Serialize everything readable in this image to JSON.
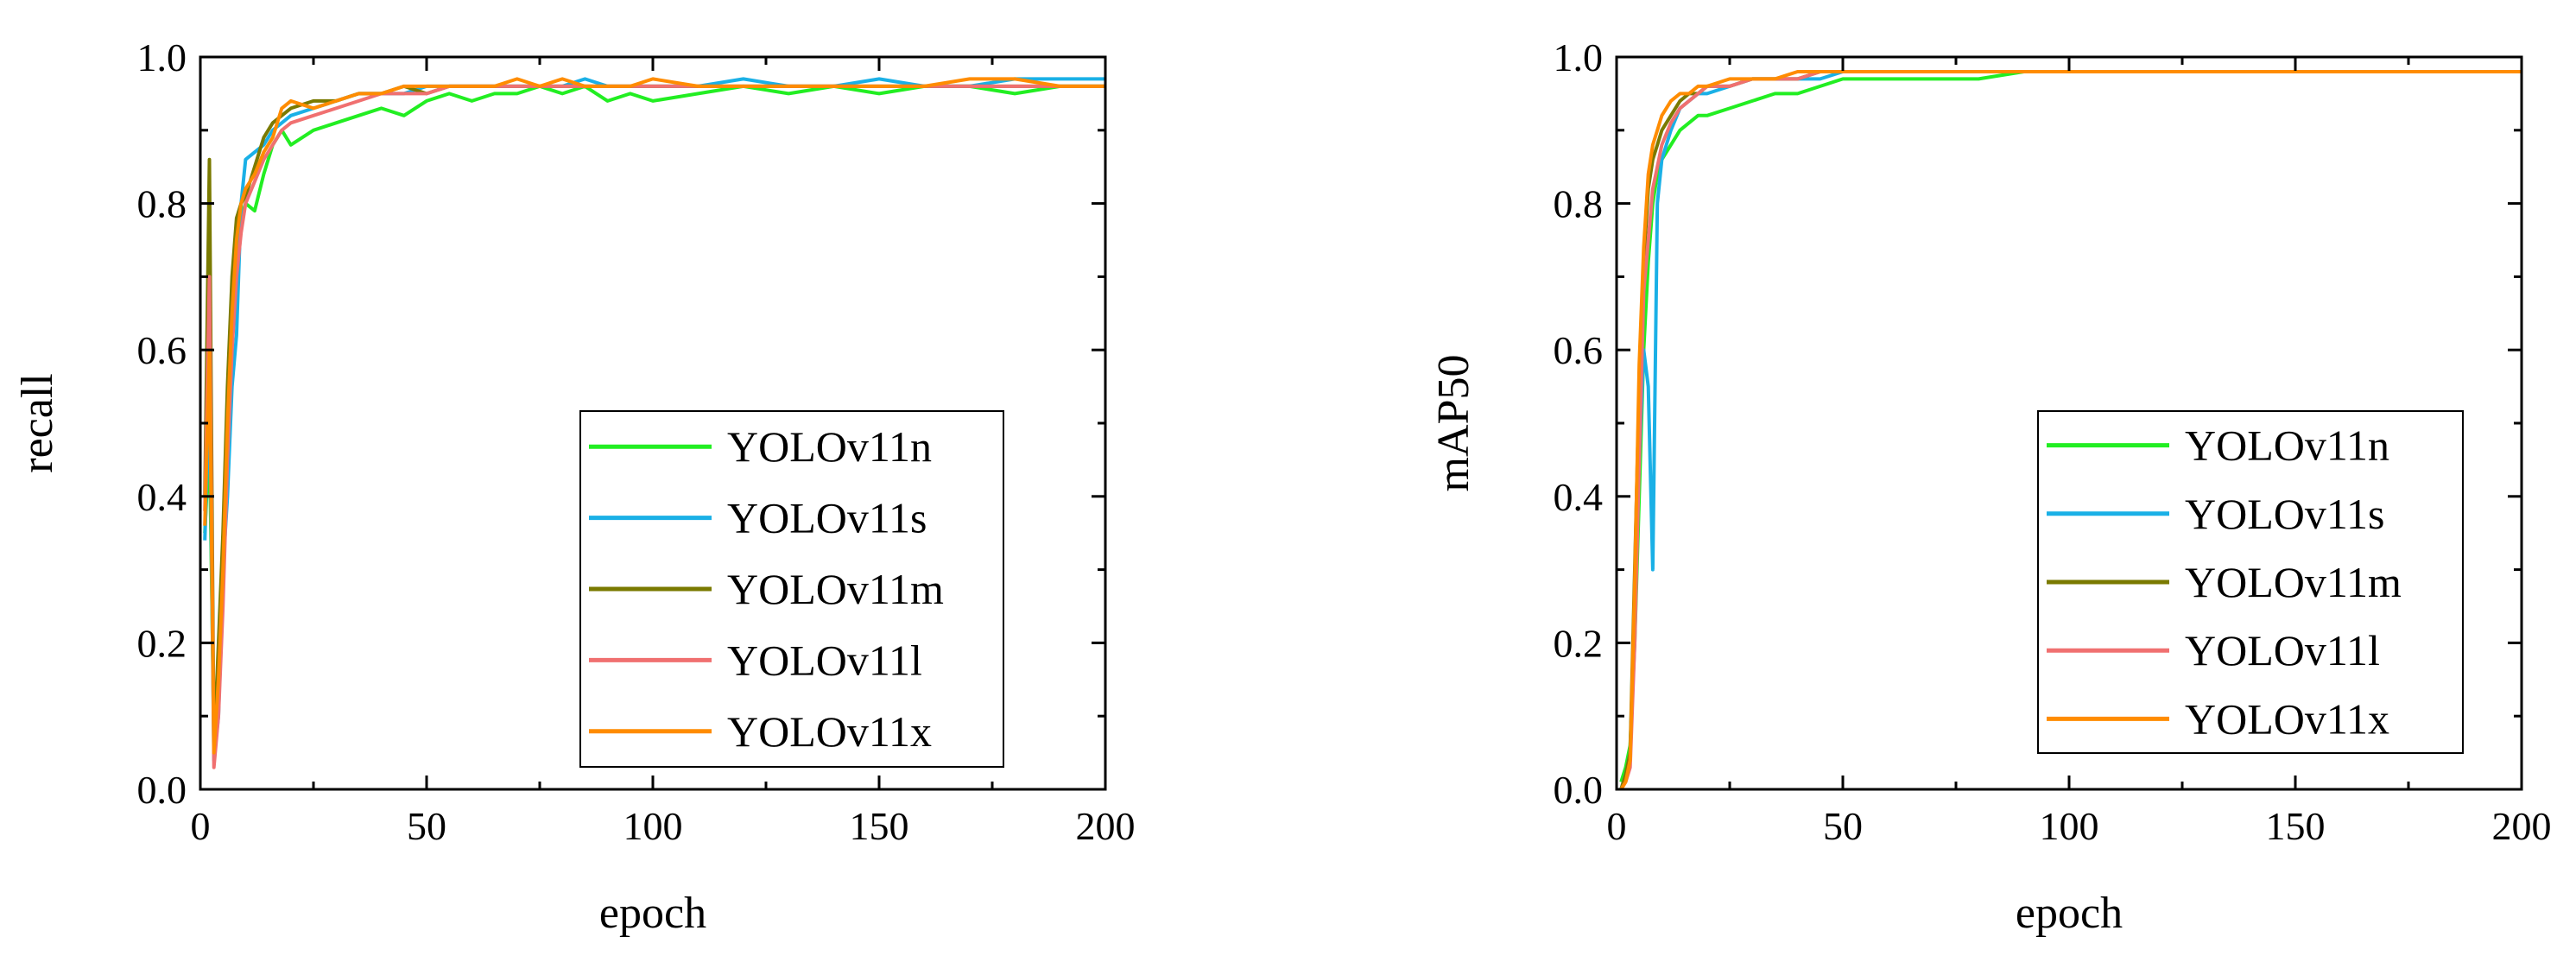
{
  "chart_data": [
    {
      "id": "recall",
      "type": "line",
      "title": "",
      "xlabel": "epoch",
      "ylabel": "recall",
      "xlim": [
        0,
        200
      ],
      "ylim": [
        0.0,
        1.0
      ],
      "xticks": [
        0,
        50,
        100,
        150,
        200
      ],
      "xtick_labels": [
        "0",
        "50",
        "100",
        "150",
        "200"
      ],
      "yticks": [
        0.0,
        0.2,
        0.4,
        0.6,
        0.8,
        1.0
      ],
      "ytick_labels": [
        "0.0",
        "0.2",
        "0.4",
        "0.6",
        "0.8",
        "1.0"
      ],
      "legend_position": "bottom-right",
      "x": [
        1,
        2,
        3,
        4,
        5,
        6,
        7,
        8,
        9,
        10,
        12,
        14,
        16,
        18,
        20,
        25,
        30,
        35,
        40,
        45,
        50,
        55,
        60,
        65,
        70,
        75,
        80,
        85,
        90,
        95,
        100,
        110,
        120,
        130,
        140,
        150,
        160,
        170,
        180,
        190,
        200
      ],
      "series": [
        {
          "name": "YOLOv11n",
          "color": "#22ee22",
          "values": [
            0.35,
            0.48,
            0.08,
            0.12,
            0.28,
            0.45,
            0.62,
            0.72,
            0.78,
            0.8,
            0.79,
            0.84,
            0.88,
            0.9,
            0.88,
            0.9,
            0.91,
            0.92,
            0.93,
            0.92,
            0.94,
            0.95,
            0.94,
            0.95,
            0.95,
            0.96,
            0.95,
            0.96,
            0.94,
            0.95,
            0.94,
            0.95,
            0.96,
            0.95,
            0.96,
            0.95,
            0.96,
            0.96,
            0.95,
            0.96,
            0.96
          ]
        },
        {
          "name": "YOLOv11s",
          "color": "#1ab0e6",
          "values": [
            0.34,
            0.55,
            0.04,
            0.1,
            0.3,
            0.4,
            0.55,
            0.62,
            0.8,
            0.86,
            0.87,
            0.88,
            0.9,
            0.91,
            0.92,
            0.93,
            0.94,
            0.95,
            0.95,
            0.95,
            0.96,
            0.96,
            0.96,
            0.96,
            0.96,
            0.96,
            0.96,
            0.97,
            0.96,
            0.96,
            0.96,
            0.96,
            0.97,
            0.96,
            0.96,
            0.97,
            0.96,
            0.96,
            0.97,
            0.97,
            0.97
          ]
        },
        {
          "name": "YOLOv11m",
          "color": "#7a7a00",
          "values": [
            0.4,
            0.86,
            0.05,
            0.2,
            0.35,
            0.55,
            0.7,
            0.78,
            0.8,
            0.81,
            0.85,
            0.89,
            0.91,
            0.92,
            0.93,
            0.94,
            0.94,
            0.95,
            0.95,
            0.96,
            0.95,
            0.96,
            0.96,
            0.96,
            0.96,
            0.96,
            0.96,
            0.96,
            0.96,
            0.96,
            0.96,
            0.96,
            0.96,
            0.96,
            0.96,
            0.96,
            0.96,
            0.96,
            0.96,
            0.96,
            0.96
          ]
        },
        {
          "name": "YOLOv11l",
          "color": "#f07070",
          "values": [
            0.38,
            0.7,
            0.03,
            0.1,
            0.25,
            0.45,
            0.6,
            0.7,
            0.76,
            0.8,
            0.83,
            0.86,
            0.88,
            0.9,
            0.91,
            0.92,
            0.93,
            0.94,
            0.95,
            0.95,
            0.95,
            0.96,
            0.96,
            0.96,
            0.96,
            0.96,
            0.96,
            0.96,
            0.96,
            0.96,
            0.96,
            0.96,
            0.96,
            0.96,
            0.96,
            0.96,
            0.96,
            0.96,
            0.96,
            0.96,
            0.96
          ]
        },
        {
          "name": "YOLOv11x",
          "color": "#ff8c00",
          "values": [
            0.36,
            0.6,
            0.05,
            0.15,
            0.3,
            0.5,
            0.65,
            0.75,
            0.8,
            0.82,
            0.84,
            0.87,
            0.89,
            0.93,
            0.94,
            0.93,
            0.94,
            0.95,
            0.95,
            0.96,
            0.96,
            0.96,
            0.96,
            0.96,
            0.97,
            0.96,
            0.97,
            0.96,
            0.96,
            0.96,
            0.97,
            0.96,
            0.96,
            0.96,
            0.96,
            0.96,
            0.96,
            0.97,
            0.97,
            0.96,
            0.96
          ]
        }
      ]
    },
    {
      "id": "map50",
      "type": "line",
      "title": "",
      "xlabel": "epoch",
      "ylabel": "mAP50",
      "xlim": [
        0,
        200
      ],
      "ylim": [
        0.0,
        1.0
      ],
      "xticks": [
        0,
        50,
        100,
        150,
        200
      ],
      "xtick_labels": [
        "0",
        "50",
        "100",
        "150",
        "200"
      ],
      "yticks": [
        0.0,
        0.2,
        0.4,
        0.6,
        0.8,
        1.0
      ],
      "ytick_labels": [
        "0.0",
        "0.2",
        "0.4",
        "0.6",
        "0.8",
        "1.0"
      ],
      "legend_position": "center-right",
      "x": [
        1,
        2,
        3,
        4,
        5,
        6,
        7,
        8,
        9,
        10,
        12,
        14,
        16,
        18,
        20,
        25,
        30,
        35,
        40,
        45,
        50,
        60,
        70,
        80,
        90,
        100,
        120,
        140,
        160,
        180,
        200
      ],
      "series": [
        {
          "name": "YOLOv11n",
          "color": "#22ee22",
          "values": [
            0.01,
            0.03,
            0.06,
            0.2,
            0.4,
            0.6,
            0.72,
            0.8,
            0.84,
            0.86,
            0.88,
            0.9,
            0.91,
            0.92,
            0.92,
            0.93,
            0.94,
            0.95,
            0.95,
            0.96,
            0.97,
            0.97,
            0.97,
            0.97,
            0.98,
            0.98,
            0.98,
            0.98,
            0.98,
            0.98,
            0.98
          ]
        },
        {
          "name": "YOLOv11s",
          "color": "#1ab0e6",
          "values": [
            0.0,
            0.02,
            0.05,
            0.25,
            0.45,
            0.6,
            0.55,
            0.3,
            0.8,
            0.86,
            0.9,
            0.93,
            0.94,
            0.95,
            0.95,
            0.96,
            0.97,
            0.97,
            0.97,
            0.97,
            0.98,
            0.98,
            0.98,
            0.98,
            0.98,
            0.98,
            0.98,
            0.98,
            0.98,
            0.98,
            0.98
          ]
        },
        {
          "name": "YOLOv11m",
          "color": "#7a7a00",
          "values": [
            0.0,
            0.02,
            0.05,
            0.3,
            0.55,
            0.72,
            0.82,
            0.86,
            0.88,
            0.9,
            0.92,
            0.94,
            0.95,
            0.95,
            0.96,
            0.96,
            0.97,
            0.97,
            0.97,
            0.98,
            0.98,
            0.98,
            0.98,
            0.98,
            0.98,
            0.98,
            0.98,
            0.98,
            0.98,
            0.98,
            0.98
          ]
        },
        {
          "name": "YOLOv11l",
          "color": "#f07070",
          "values": [
            0.0,
            0.01,
            0.03,
            0.2,
            0.45,
            0.68,
            0.75,
            0.82,
            0.85,
            0.88,
            0.91,
            0.93,
            0.94,
            0.95,
            0.96,
            0.96,
            0.97,
            0.97,
            0.97,
            0.98,
            0.98,
            0.98,
            0.98,
            0.98,
            0.98,
            0.98,
            0.98,
            0.98,
            0.98,
            0.98,
            0.98
          ]
        },
        {
          "name": "YOLOv11x",
          "color": "#ff8c00",
          "values": [
            0.0,
            0.01,
            0.04,
            0.28,
            0.58,
            0.74,
            0.84,
            0.88,
            0.9,
            0.92,
            0.94,
            0.95,
            0.95,
            0.96,
            0.96,
            0.97,
            0.97,
            0.97,
            0.98,
            0.98,
            0.98,
            0.98,
            0.98,
            0.98,
            0.98,
            0.98,
            0.98,
            0.98,
            0.98,
            0.98,
            0.98
          ]
        }
      ]
    }
  ]
}
